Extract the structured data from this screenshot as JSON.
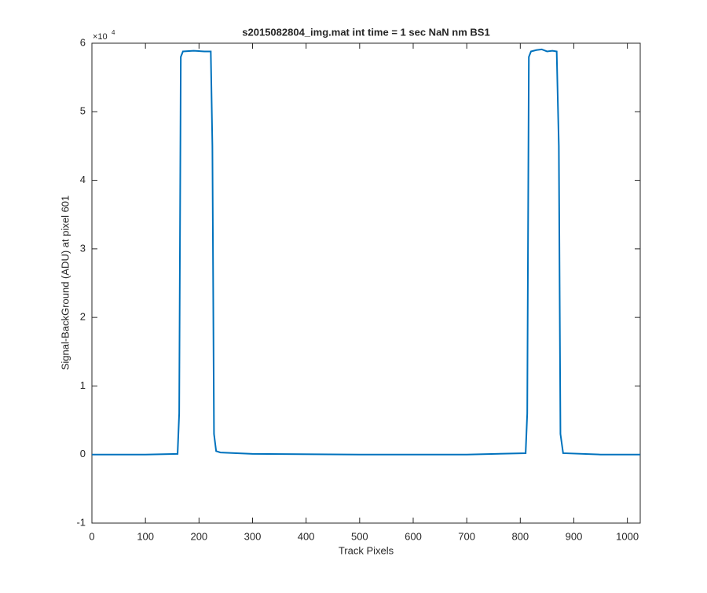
{
  "chart_data": {
    "type": "line",
    "title": "s2015082804_img.mat int time = 1 sec  NaN nm BS1",
    "xlabel": "Track Pixels",
    "ylabel": "Signal-BackGround (ADU) at pixel 601",
    "y_multiplier": {
      "base": "×10",
      "exponent": "4"
    },
    "x": [
      0,
      100,
      160,
      163,
      166,
      170,
      190,
      210,
      222,
      225,
      228,
      232,
      240,
      300,
      500,
      700,
      810,
      813,
      816,
      820,
      830,
      840,
      850,
      860,
      868,
      872,
      875,
      880,
      950,
      1024
    ],
    "series": [
      {
        "name": "signal",
        "color": "#0072BD",
        "values": [
          0.0,
          0.0,
          0.01,
          0.6,
          5.8,
          5.88,
          5.89,
          5.88,
          5.88,
          4.5,
          0.3,
          0.05,
          0.03,
          0.01,
          0.0,
          0.0,
          0.02,
          0.6,
          5.8,
          5.88,
          5.9,
          5.91,
          5.88,
          5.89,
          5.88,
          4.5,
          0.3,
          0.02,
          0.0,
          0.0
        ]
      }
    ],
    "xlim": [
      0,
      1024
    ],
    "xticks": [
      0,
      100,
      200,
      300,
      400,
      500,
      600,
      700,
      800,
      900,
      1000
    ],
    "ylim": [
      -1,
      6
    ],
    "yticks": [
      -1,
      0,
      1,
      2,
      3,
      4,
      5,
      6
    ]
  }
}
